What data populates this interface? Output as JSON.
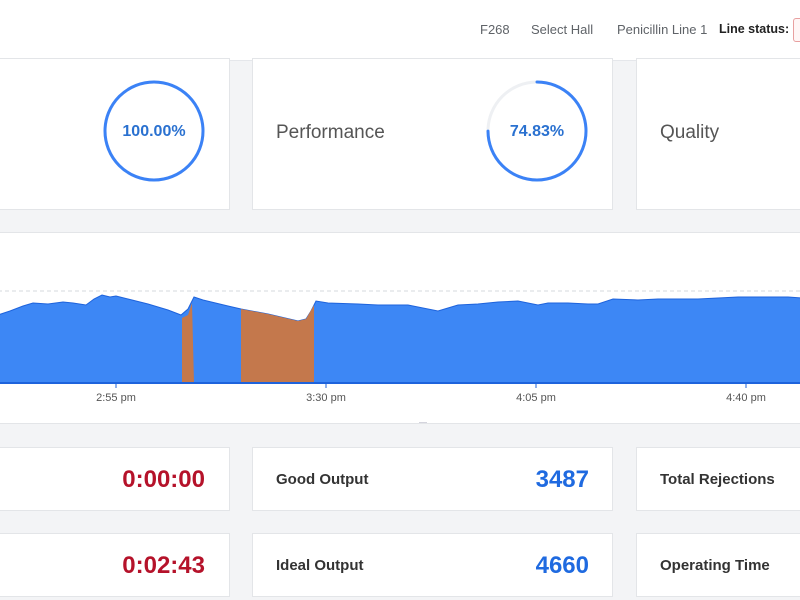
{
  "topbar": {
    "plant": "F268",
    "hall": "Select Hall",
    "line": "Penicillin Line 1",
    "status_label": "Line status:"
  },
  "metrics": [
    {
      "label": "",
      "value_text": "100.00%",
      "value": 100.0
    },
    {
      "label": "Performance",
      "value_text": "74.83%",
      "value": 74.83
    },
    {
      "label": "Quality",
      "value_text": "",
      "value": null
    }
  ],
  "chart": {
    "x_ticks": [
      "2:55 pm",
      "3:30 pm",
      "4:05 pm",
      "4:40 pm"
    ],
    "colors": {
      "running": "#3d87f5",
      "stopped": "#c4784c",
      "line": "#1e63dc"
    }
  },
  "stats": [
    {
      "label": "",
      "value": "0:00:00",
      "color": "red"
    },
    {
      "label": "Good Output",
      "value": "3487",
      "color": "blue"
    },
    {
      "label": "Total Rejections",
      "value": "",
      "color": "blue"
    },
    {
      "label": "",
      "value": "0:02:43",
      "color": "red"
    },
    {
      "label": "Ideal Output",
      "value": "4660",
      "color": "blue"
    },
    {
      "label": "Operating Time",
      "value": "",
      "color": "blue"
    }
  ]
}
